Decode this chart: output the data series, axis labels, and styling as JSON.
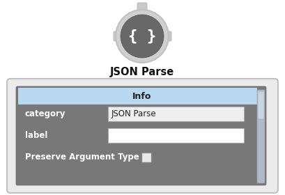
{
  "bg_color": "#ffffff",
  "title": "JSON Parse",
  "title_fontsize": 10.5,
  "icon_bg": "#686868",
  "icon_outer_color": "#d0d0d0",
  "icon_outer_edge": "#c0c0c0",
  "icon_tab_color": "#c8c8c8",
  "panel_bg": "#787878",
  "panel_border_color": "#c0c0c0",
  "panel_outer_bg": "#ebebeb",
  "info_header_bg": "#b8d8f0",
  "info_header_text": "Info",
  "info_header_color": "#222222",
  "row1_label": "category",
  "row1_value": "JSON Parse",
  "row2_label": "label",
  "row3_label": "Preserve Argument Type",
  "field1_bg": "#eeeeee",
  "field2_bg": "#ffffff",
  "checkbox_bg": "#e8e8e8",
  "label_color": "#ffffff",
  "scrollbar_bg": "#b0b8c4",
  "scrollbar_track": "#c8d4dc"
}
